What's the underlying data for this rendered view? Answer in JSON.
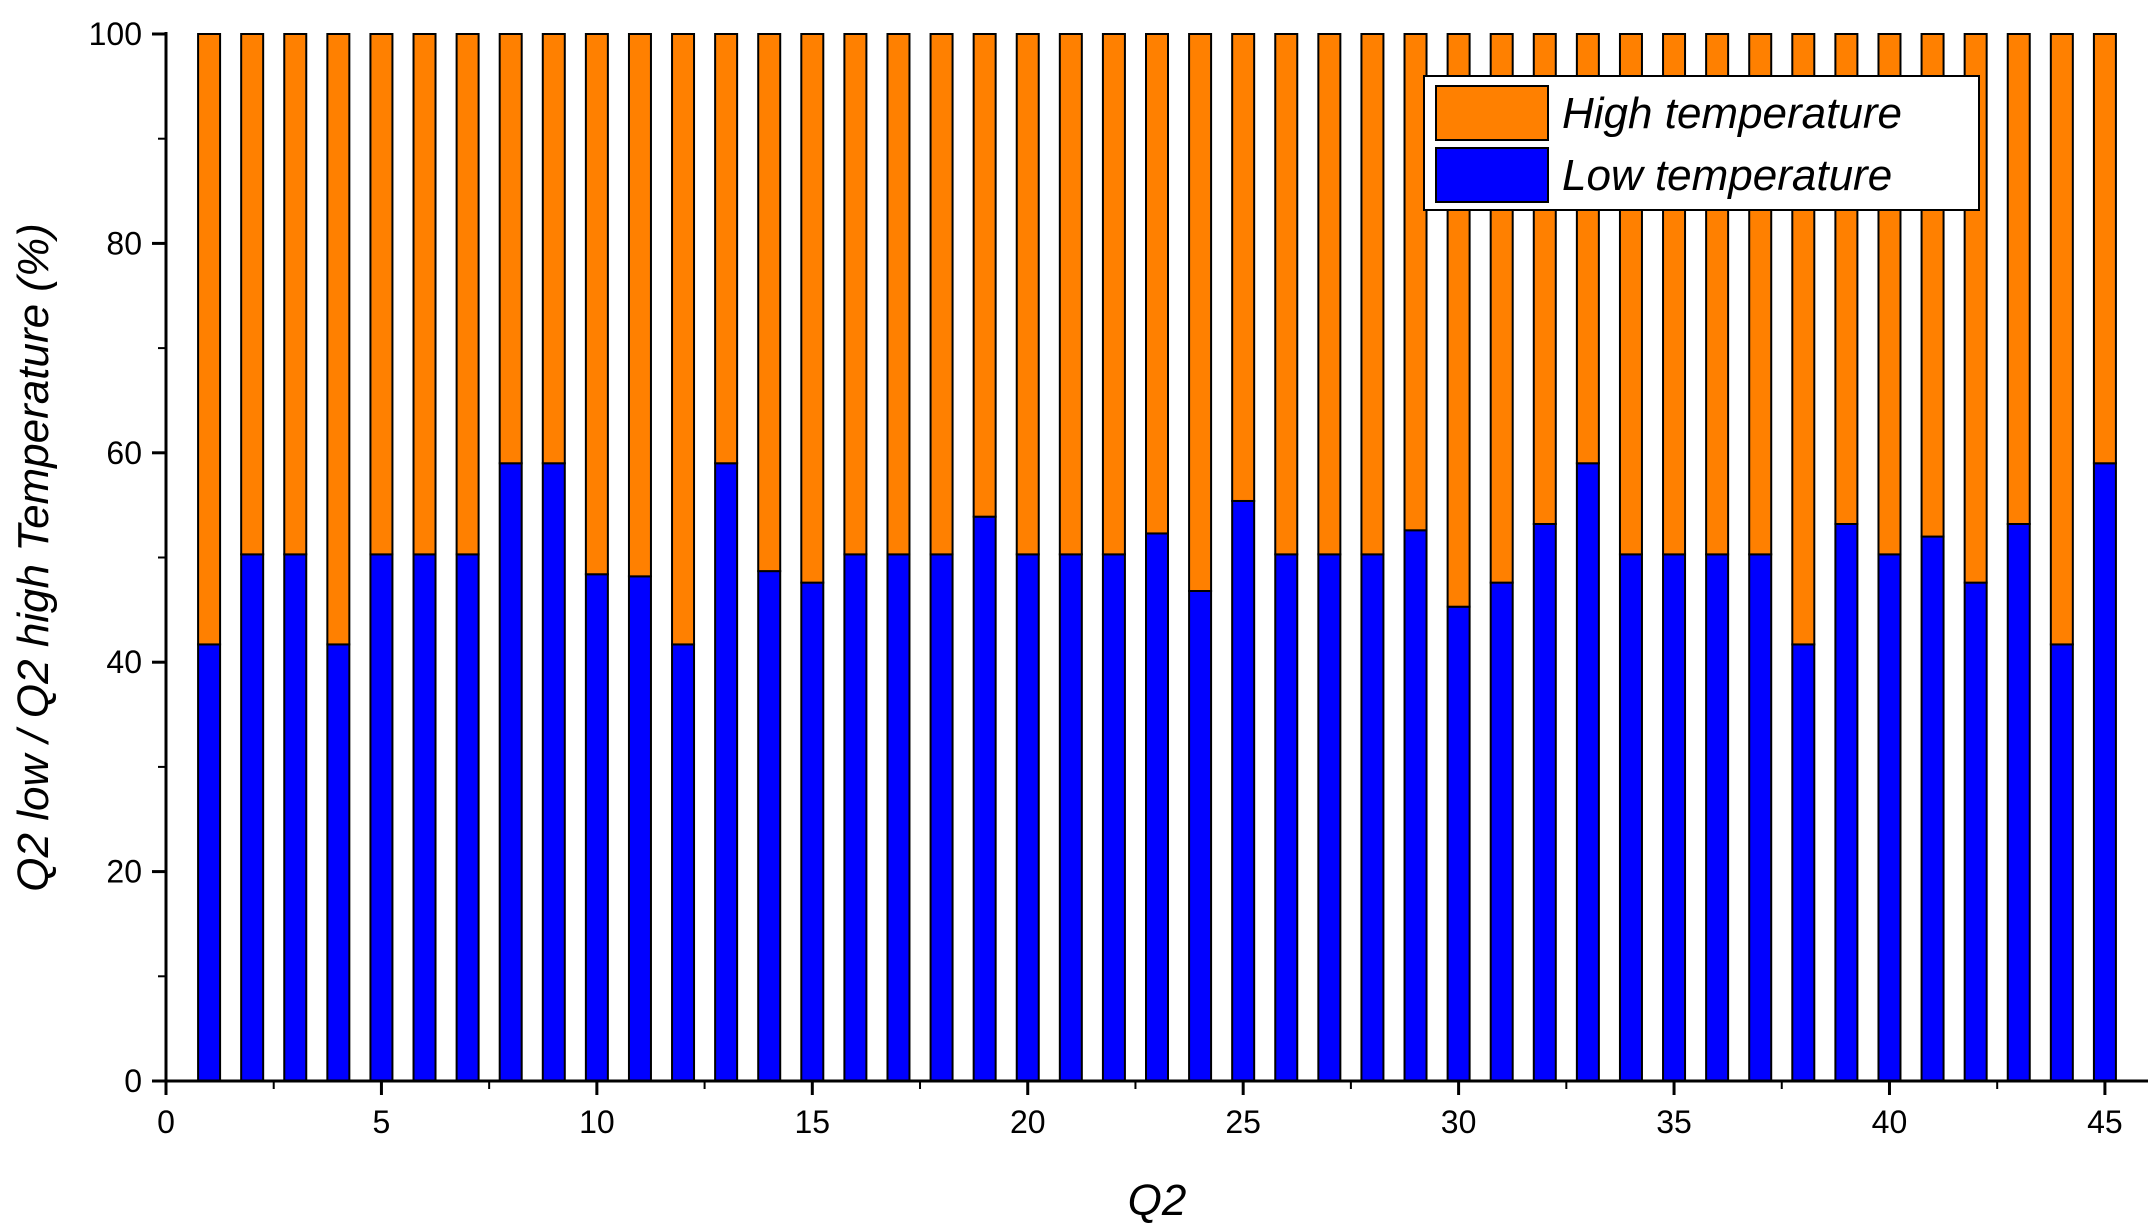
{
  "chart_data": {
    "type": "bar",
    "stacked": true,
    "xlabel": "Q2",
    "ylabel": "Q2 low / Q2 high Temperature (%)",
    "xlim": [
      0,
      46
    ],
    "ylim": [
      0,
      100
    ],
    "x_ticks": [
      0,
      5,
      10,
      15,
      20,
      25,
      30,
      35,
      40,
      45
    ],
    "y_ticks": [
      0,
      20,
      40,
      60,
      80,
      100
    ],
    "grid": false,
    "legend_position": "top-right",
    "categories": [
      1,
      2,
      3,
      4,
      5,
      6,
      7,
      8,
      9,
      10,
      11,
      12,
      13,
      14,
      15,
      16,
      17,
      18,
      19,
      20,
      21,
      22,
      23,
      24,
      25,
      26,
      27,
      28,
      29,
      30,
      31,
      32,
      33,
      34,
      35,
      36,
      37,
      38,
      39,
      40,
      41,
      42,
      43,
      44,
      45
    ],
    "series": [
      {
        "name": "Low temperature",
        "color": "#0000ff",
        "values": [
          41.7,
          50.3,
          50.3,
          41.7,
          50.3,
          50.3,
          50.3,
          59,
          59,
          48.4,
          48.2,
          41.7,
          59,
          48.7,
          47.6,
          50.3,
          50.3,
          50.3,
          53.9,
          50.3,
          50.3,
          50.3,
          52.3,
          46.8,
          55.4,
          50.3,
          50.3,
          50.3,
          52.6,
          45.3,
          47.6,
          53.2,
          59,
          50.3,
          50.3,
          50.3,
          50.3,
          41.7,
          53.2,
          50.3,
          52,
          47.6,
          53.2,
          41.7,
          59
        ]
      },
      {
        "name": "High temperature",
        "color": "#ff8000",
        "values": [
          58.3,
          49.7,
          49.7,
          58.3,
          49.7,
          49.7,
          49.7,
          41,
          41,
          51.6,
          51.8,
          58.3,
          41,
          51.3,
          52.4,
          49.7,
          49.7,
          49.7,
          46.1,
          49.7,
          49.7,
          49.7,
          47.7,
          53.2,
          44.6,
          49.7,
          49.7,
          49.7,
          47.4,
          54.7,
          52.4,
          46.8,
          41,
          49.7,
          49.7,
          49.7,
          49.7,
          58.3,
          46.8,
          49.7,
          48,
          52.4,
          46.8,
          58.3,
          41
        ]
      }
    ]
  }
}
